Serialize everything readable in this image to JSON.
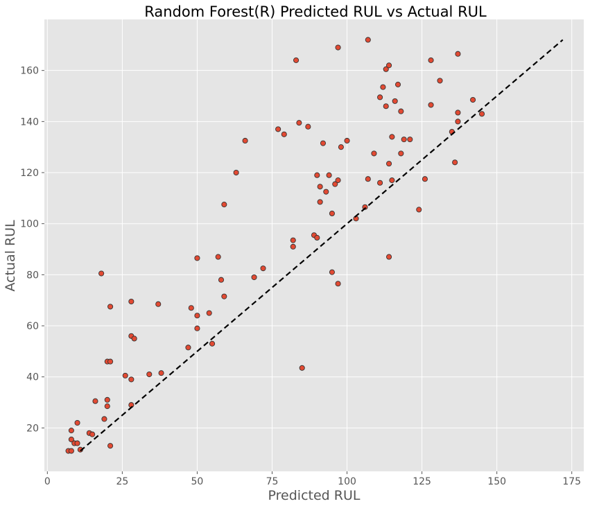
{
  "chart_data": {
    "type": "scatter",
    "title": "Random Forest(R) Predicted RUL vs Actual RUL",
    "xlabel": "Predicted RUL",
    "ylabel": "Actual RUL",
    "xlim": [
      -1,
      179
    ],
    "ylim": [
      3,
      180
    ],
    "xticks": [
      0,
      25,
      50,
      75,
      100,
      125,
      150,
      175
    ],
    "yticks": [
      20,
      40,
      60,
      80,
      100,
      120,
      140,
      160
    ],
    "grid": true,
    "colors": {
      "background": "#e5e5e5",
      "grid": "#ffffff",
      "point_fill": "#e24a33",
      "point_edge": "#333333",
      "reference_line": "#000000"
    },
    "reference_line": {
      "style": "dashed",
      "x": [
        11,
        172
      ],
      "y": [
        11,
        172
      ]
    },
    "points": [
      {
        "x": 7,
        "y": 11
      },
      {
        "x": 8,
        "y": 11
      },
      {
        "x": 8,
        "y": 15.5
      },
      {
        "x": 8,
        "y": 19
      },
      {
        "x": 9,
        "y": 14
      },
      {
        "x": 10,
        "y": 14
      },
      {
        "x": 10,
        "y": 22
      },
      {
        "x": 11,
        "y": 11.5
      },
      {
        "x": 14,
        "y": 18
      },
      {
        "x": 15,
        "y": 17.5
      },
      {
        "x": 16,
        "y": 30.5
      },
      {
        "x": 18,
        "y": 80.5
      },
      {
        "x": 19,
        "y": 23.5
      },
      {
        "x": 20,
        "y": 46
      },
      {
        "x": 20,
        "y": 31
      },
      {
        "x": 20,
        "y": 28.5
      },
      {
        "x": 21,
        "y": 46
      },
      {
        "x": 21,
        "y": 67.5
      },
      {
        "x": 21,
        "y": 13
      },
      {
        "x": 26,
        "y": 40.5
      },
      {
        "x": 28,
        "y": 69.5
      },
      {
        "x": 28,
        "y": 56
      },
      {
        "x": 28,
        "y": 39
      },
      {
        "x": 28,
        "y": 29
      },
      {
        "x": 29,
        "y": 55
      },
      {
        "x": 34,
        "y": 41
      },
      {
        "x": 37,
        "y": 68.5
      },
      {
        "x": 38,
        "y": 41.5
      },
      {
        "x": 47,
        "y": 51.5
      },
      {
        "x": 48,
        "y": 67
      },
      {
        "x": 50,
        "y": 86.5
      },
      {
        "x": 50,
        "y": 64
      },
      {
        "x": 50,
        "y": 59
      },
      {
        "x": 54,
        "y": 65
      },
      {
        "x": 55,
        "y": 53
      },
      {
        "x": 57,
        "y": 87
      },
      {
        "x": 58,
        "y": 78
      },
      {
        "x": 59,
        "y": 71.5
      },
      {
        "x": 59,
        "y": 107.5
      },
      {
        "x": 63,
        "y": 120
      },
      {
        "x": 66,
        "y": 132.5
      },
      {
        "x": 69,
        "y": 79
      },
      {
        "x": 72,
        "y": 82.5
      },
      {
        "x": 77,
        "y": 137
      },
      {
        "x": 79,
        "y": 135
      },
      {
        "x": 82,
        "y": 93.5
      },
      {
        "x": 82,
        "y": 91
      },
      {
        "x": 83,
        "y": 164
      },
      {
        "x": 84,
        "y": 139.5
      },
      {
        "x": 85,
        "y": 43.5
      },
      {
        "x": 87,
        "y": 138
      },
      {
        "x": 89,
        "y": 95.5
      },
      {
        "x": 90,
        "y": 94.5
      },
      {
        "x": 90,
        "y": 119
      },
      {
        "x": 91,
        "y": 114.5
      },
      {
        "x": 91,
        "y": 108.5
      },
      {
        "x": 92,
        "y": 131.5
      },
      {
        "x": 93,
        "y": 112.5
      },
      {
        "x": 94,
        "y": 119
      },
      {
        "x": 95,
        "y": 81
      },
      {
        "x": 95,
        "y": 104
      },
      {
        "x": 96,
        "y": 115.5
      },
      {
        "x": 97,
        "y": 117
      },
      {
        "x": 97,
        "y": 169
      },
      {
        "x": 97,
        "y": 76.5
      },
      {
        "x": 98,
        "y": 130
      },
      {
        "x": 100,
        "y": 132.5
      },
      {
        "x": 103,
        "y": 102
      },
      {
        "x": 106,
        "y": 106.5
      },
      {
        "x": 107,
        "y": 172
      },
      {
        "x": 107,
        "y": 117.5
      },
      {
        "x": 109,
        "y": 127.5
      },
      {
        "x": 111,
        "y": 149.5
      },
      {
        "x": 111,
        "y": 116
      },
      {
        "x": 112,
        "y": 153.5
      },
      {
        "x": 113,
        "y": 160.5
      },
      {
        "x": 113,
        "y": 146
      },
      {
        "x": 114,
        "y": 162
      },
      {
        "x": 114,
        "y": 123.5
      },
      {
        "x": 114,
        "y": 87
      },
      {
        "x": 115,
        "y": 134
      },
      {
        "x": 115,
        "y": 117
      },
      {
        "x": 116,
        "y": 148
      },
      {
        "x": 117,
        "y": 154.5
      },
      {
        "x": 118,
        "y": 144
      },
      {
        "x": 118,
        "y": 127.5
      },
      {
        "x": 119,
        "y": 133
      },
      {
        "x": 121,
        "y": 133
      },
      {
        "x": 124,
        "y": 105.5
      },
      {
        "x": 126,
        "y": 117.5
      },
      {
        "x": 128,
        "y": 164
      },
      {
        "x": 128,
        "y": 146.5
      },
      {
        "x": 131,
        "y": 156
      },
      {
        "x": 135,
        "y": 136
      },
      {
        "x": 136,
        "y": 124
      },
      {
        "x": 137,
        "y": 166.5
      },
      {
        "x": 137,
        "y": 143.5
      },
      {
        "x": 137,
        "y": 140
      },
      {
        "x": 142,
        "y": 148.5
      },
      {
        "x": 145,
        "y": 143
      }
    ]
  }
}
